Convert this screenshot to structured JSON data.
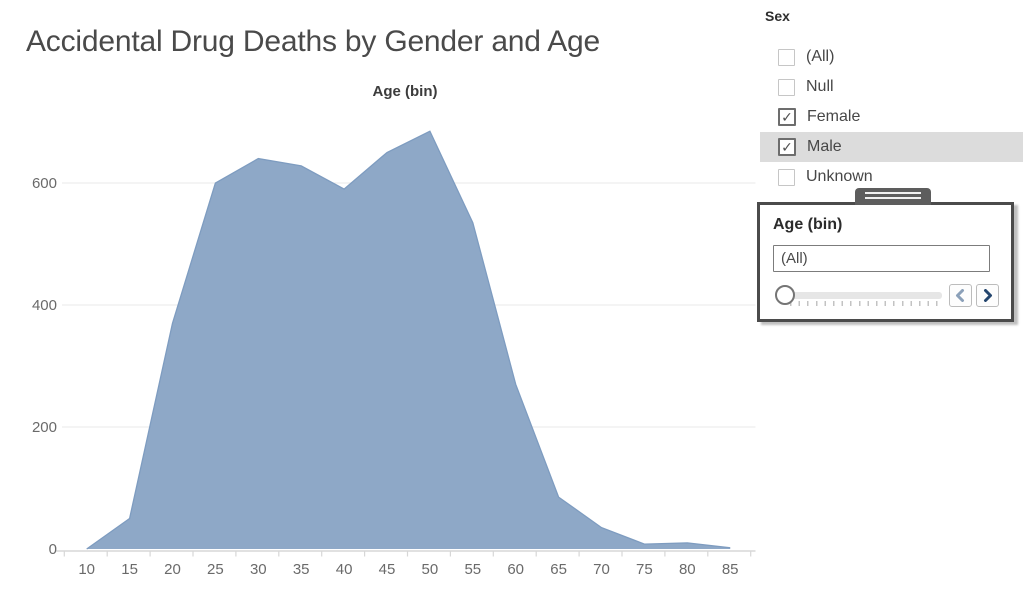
{
  "window": {
    "title": "Accidental Drug Deaths by Gender and Age"
  },
  "chart_data": {
    "type": "area",
    "title": "Age (bin)",
    "x": [
      10,
      15,
      20,
      25,
      30,
      35,
      40,
      45,
      50,
      55,
      60,
      65,
      70,
      75,
      80,
      85
    ],
    "values": [
      0,
      50,
      370,
      600,
      640,
      628,
      590,
      650,
      685,
      535,
      270,
      85,
      35,
      8,
      10,
      2
    ],
    "yticks": [
      0,
      200,
      400,
      600
    ],
    "ylim": [
      0,
      700
    ],
    "xlabel": "Age (bin)",
    "ylabel": "",
    "grid": true,
    "legend": "none",
    "fill_color": "#8EA8C7",
    "line_color": "#7E9CC0"
  },
  "sex_filter": {
    "label": "Sex",
    "check_glyph": "✓",
    "highlight_color": "#DCDCDC",
    "options": [
      {
        "label": "(All)",
        "checked": false,
        "highlighted": false
      },
      {
        "label": "Null",
        "checked": false,
        "highlighted": false
      },
      {
        "label": "Female",
        "checked": true,
        "highlighted": false
      },
      {
        "label": "Male",
        "checked": true,
        "highlighted": true
      },
      {
        "label": "Unknown",
        "checked": false,
        "highlighted": false
      }
    ]
  },
  "age_filter": {
    "title": "Age (bin)",
    "value": "(All)",
    "slider_position": "start",
    "prev_icon": "chevron-left-icon",
    "next_icon": "chevron-right-icon"
  },
  "colors": {
    "area_fill": "#8EA8C7",
    "area_line": "#7E9CC0",
    "row_highlight": "#DCDCDC",
    "card_border": "#4B4B4B",
    "prev_chevron": "#8BA0B9",
    "next_chevron": "#24466E"
  }
}
